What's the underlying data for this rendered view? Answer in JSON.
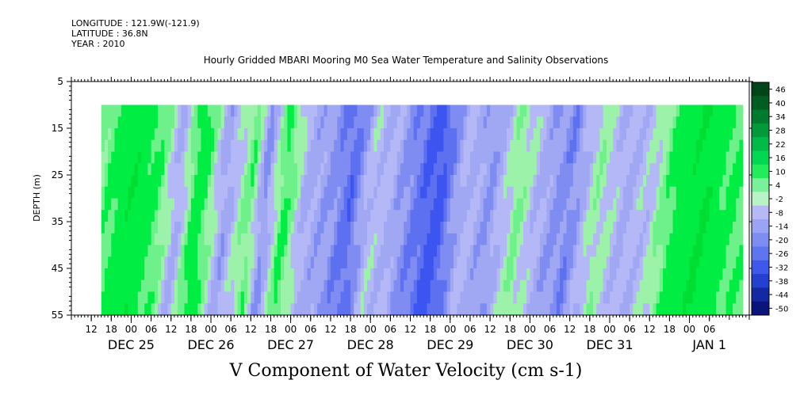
{
  "header": {
    "longitude": "LONGITUDE : 121.9W(-121.9)",
    "latitude": "LATITUDE : 36.8N",
    "year": "YEAR : 2010"
  },
  "chart_data": {
    "type": "heatmap",
    "title": "Hourly Gridded MBARI Mooring M0 Sea Water Temperature and Salinity Observations",
    "xlabel": "V Component of Water Velocity (cm s-1)",
    "ylabel": "DEPTH (m)",
    "ylim": [
      5,
      55
    ],
    "y_inverted": true,
    "y_ticks": [
      5,
      15,
      25,
      35,
      45,
      55
    ],
    "x_hour_ticks": [
      "12",
      "18",
      "00",
      "06",
      "12",
      "18",
      "00",
      "06",
      "12",
      "18",
      "00",
      "06",
      "12",
      "18",
      "00",
      "06",
      "12",
      "18",
      "00",
      "06",
      "12",
      "18",
      "00",
      "06",
      "12",
      "18",
      "00",
      "06",
      "12",
      "18",
      "00",
      "06"
    ],
    "x_date_labels": [
      "DEC 25",
      "DEC 26",
      "DEC 27",
      "DEC 28",
      "DEC 29",
      "DEC 30",
      "DEC 31",
      "JAN 1"
    ],
    "x_range_hours": [
      -18,
      186
    ],
    "data_x_range_hours": [
      -9,
      184
    ],
    "data_depth_range": [
      10,
      55
    ],
    "colorbar_levels": [
      46,
      40,
      34,
      28,
      22,
      16,
      10,
      4,
      -2,
      -8,
      -14,
      -20,
      -26,
      -32,
      -38,
      -44,
      -50
    ],
    "colors": {
      "strong_positive": "#00ee44",
      "weak_positive": "#9cf2a8",
      "weak_negative": "#a0a8f4",
      "strong_negative": "#3c55f0"
    },
    "column_profile_hours": [
      -9,
      0,
      8,
      14,
      20,
      28,
      36,
      40,
      46,
      52,
      60,
      66,
      72,
      78,
      84,
      92,
      100,
      108,
      116,
      124,
      132,
      140,
      148,
      156,
      164,
      172,
      178,
      184
    ],
    "column_profile_values": [
      6,
      20,
      9,
      -10,
      18,
      -12,
      8,
      -16,
      12,
      -8,
      -14,
      -24,
      -4,
      -8,
      -18,
      -30,
      -6,
      -14,
      4,
      -10,
      -18,
      2,
      -8,
      -4,
      14,
      22,
      12,
      8
    ]
  }
}
